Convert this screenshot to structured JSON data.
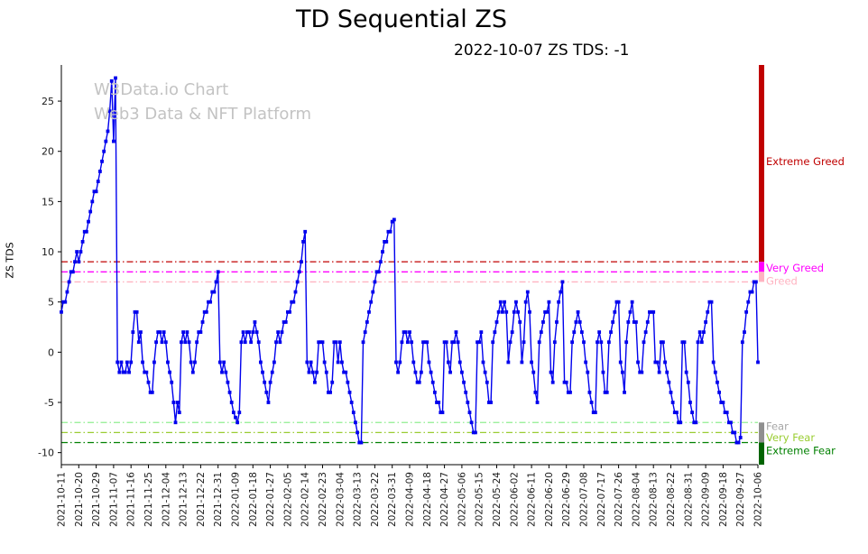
{
  "watermark": {
    "line1": "W3Data.io Chart",
    "line2": "Web3 Data & NFT Platform"
  },
  "chart_data": {
    "type": "line",
    "title": "TD Sequential ZS",
    "subtitle": "2022-10-07 ZS TDS: -1",
    "xlabel": "",
    "ylabel": "ZS TDS",
    "series_name": "ZS TDS",
    "series_color": "#0000ee",
    "marker": "square",
    "legend": "none",
    "grid": false,
    "ylim": [
      -11.2,
      28.6
    ],
    "y_ticks": [
      -10,
      -5,
      0,
      5,
      10,
      15,
      20,
      25
    ],
    "x_start_date": "2021-10-11",
    "x_tick_step": 9,
    "x_tick_labels": [
      "2021-10-11",
      "2021-10-20",
      "2021-10-29",
      "2021-11-07",
      "2021-11-16",
      "2021-11-25",
      "2021-12-04",
      "2021-12-13",
      "2021-12-22",
      "2021-12-31",
      "2022-01-09",
      "2022-01-18",
      "2022-01-27",
      "2022-02-05",
      "2022-02-14",
      "2022-02-23",
      "2022-03-04",
      "2022-03-13",
      "2022-03-22",
      "2022-03-31",
      "2022-04-09",
      "2022-04-18",
      "2022-04-27",
      "2022-05-06",
      "2022-05-15",
      "2022-05-24",
      "2022-06-02",
      "2022-06-11",
      "2022-06-20",
      "2022-06-29",
      "2022-07-08",
      "2022-07-17",
      "2022-07-26",
      "2022-08-04",
      "2022-08-13",
      "2022-08-22",
      "2022-08-31",
      "2022-09-09",
      "2022-09-18",
      "2022-09-27",
      "2022-10-06"
    ],
    "values": [
      4,
      5,
      5,
      6,
      7,
      8,
      8,
      9,
      10,
      9,
      10,
      11,
      12,
      12,
      13,
      14,
      15,
      16,
      16,
      17,
      18,
      19,
      20,
      21,
      22,
      24,
      27,
      21,
      27.3,
      -1,
      -2,
      -1,
      -2,
      -2,
      -1,
      -2,
      -1,
      2,
      4,
      4,
      1,
      2,
      -1,
      -2,
      -2,
      -3,
      -4,
      -4,
      -1,
      1,
      2,
      2,
      1,
      2,
      1,
      -1,
      -2,
      -3,
      -5,
      -7,
      -5,
      -6,
      1,
      2,
      1,
      2,
      1,
      -1,
      -2,
      -1,
      1,
      2,
      2,
      3,
      4,
      4,
      5,
      5,
      6,
      6,
      7,
      8,
      -1,
      -2,
      -1,
      -2,
      -3,
      -4,
      -5,
      -6,
      -6.5,
      -7,
      -6,
      1,
      2,
      1,
      2,
      2,
      1,
      2,
      3,
      2,
      1,
      -1,
      -2,
      -3,
      -4,
      -5,
      -3,
      -2,
      -1,
      1,
      2,
      1,
      2,
      3,
      3,
      4,
      4,
      5,
      5,
      6,
      7,
      8,
      9,
      11,
      12,
      -1,
      -2,
      -1,
      -2,
      -3,
      -2,
      1,
      1,
      1,
      -1,
      -2,
      -4,
      -4,
      -3,
      1,
      1,
      -1,
      1,
      -1,
      -2,
      -2,
      -3,
      -4,
      -5,
      -6,
      -7,
      -8,
      -9,
      -9,
      1,
      2,
      3,
      4,
      5,
      6,
      7,
      8,
      8,
      9,
      10,
      11,
      11,
      12,
      12,
      13,
      13.2,
      -1,
      -2,
      -1,
      1,
      2,
      2,
      1,
      2,
      1,
      -1,
      -2,
      -3,
      -3,
      -2,
      1,
      1,
      1,
      -1,
      -2,
      -3,
      -4,
      -5,
      -5,
      -6,
      -6,
      1,
      1,
      -1,
      -2,
      1,
      1,
      2,
      1,
      -1,
      -2,
      -3,
      -4,
      -5,
      -6,
      -7,
      -8,
      -8,
      1,
      1,
      2,
      -1,
      -2,
      -3,
      -5,
      -5,
      1,
      2,
      3,
      4,
      5,
      4,
      5,
      4,
      -1,
      1,
      2,
      4,
      5,
      4,
      3,
      -1,
      1,
      5,
      6,
      4,
      -1,
      -2,
      -4,
      -5,
      1,
      2,
      3,
      4,
      4,
      5,
      -2,
      -3,
      1,
      3,
      5,
      6,
      7,
      -3,
      -3,
      -4,
      -4,
      1,
      2,
      3,
      4,
      3,
      2,
      1,
      -1,
      -2,
      -4,
      -5,
      -6,
      -6,
      1,
      2,
      1,
      -2,
      -4,
      -4,
      1,
      2,
      3,
      4,
      5,
      5,
      -1,
      -2,
      -4,
      1,
      3,
      4,
      5,
      3,
      3,
      -1,
      -2,
      -2,
      1,
      2,
      3,
      4,
      4,
      4,
      -1,
      -1,
      -2,
      1,
      1,
      -1,
      -2,
      -3,
      -4,
      -5,
      -6,
      -6,
      -7,
      -7,
      1,
      1,
      -2,
      -3,
      -5,
      -6,
      -7,
      -7,
      1,
      2,
      1,
      2,
      3,
      4,
      5,
      5,
      -1,
      -2,
      -3,
      -4,
      -5,
      -5,
      -6,
      -6,
      -7,
      -7,
      -8,
      -8,
      -9,
      -9,
      -8.5,
      1,
      2,
      4,
      5,
      6,
      6,
      7,
      7,
      -1
    ],
    "threshold_lines": [
      {
        "value": 9,
        "color": "#c00000"
      },
      {
        "value": 8,
        "color": "#ff00ff"
      },
      {
        "value": 7,
        "color": "#ffb3c1"
      },
      {
        "value": -7,
        "color": "#90ee90"
      },
      {
        "value": -8,
        "color": "#9acd32"
      },
      {
        "value": -9,
        "color": "#008000"
      }
    ],
    "threshold_bars": [
      {
        "from": 9,
        "to": 28.6,
        "color": "#c00000"
      },
      {
        "from": 8,
        "to": 9,
        "color": "#ff00ff"
      },
      {
        "from": 7,
        "to": 8,
        "color": "#ffb3c1"
      },
      {
        "from": -7,
        "to": -9,
        "color": "#8f8f8f"
      },
      {
        "from": -9,
        "to": -11.2,
        "color": "#006400"
      }
    ],
    "zone_labels": [
      {
        "text": "Extreme Greed",
        "value": 19,
        "color": "#c00000"
      },
      {
        "text": "Very Greed",
        "value": 8.4,
        "color": "#ff00ff"
      },
      {
        "text": "Greed",
        "value": 7.1,
        "color": "#ffb3c1"
      },
      {
        "text": "Fear",
        "value": -7.4,
        "color": "#a6a6a6"
      },
      {
        "text": "Very Fear",
        "value": -8.5,
        "color": "#9acd32"
      },
      {
        "text": "Extreme Fear",
        "value": -9.8,
        "color": "#008000"
      }
    ]
  }
}
